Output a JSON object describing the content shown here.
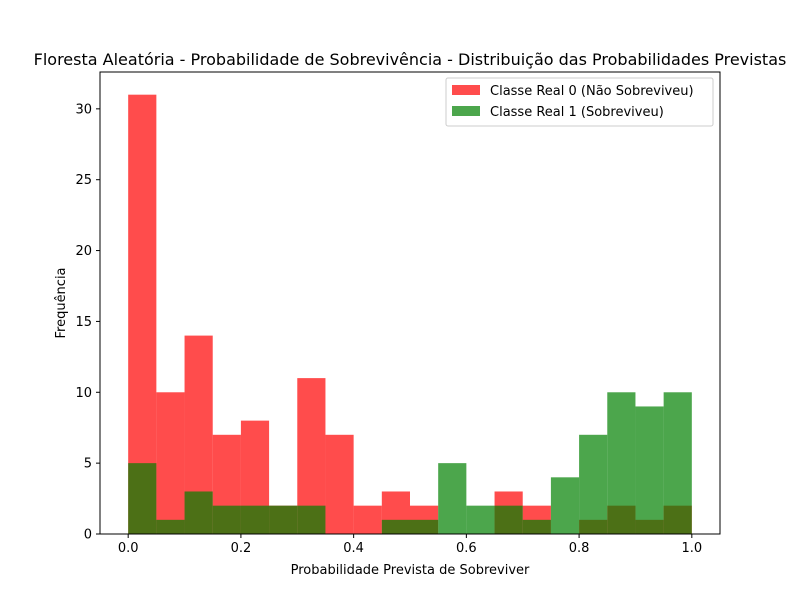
{
  "chart_data": {
    "type": "bar",
    "title": "Floresta Aleatória - Probabilidade de Sobrevivência - Distribuição das Probabilidades Previstas",
    "xlabel": "Probabilidade Prevista de Sobreviver",
    "ylabel": "Frequência",
    "xlim": [
      -0.05,
      1.05
    ],
    "ylim": [
      0,
      32.6
    ],
    "xticks": [
      0.0,
      0.2,
      0.4,
      0.6,
      0.8,
      1.0
    ],
    "xtick_labels": [
      "0.0",
      "0.2",
      "0.4",
      "0.6",
      "0.8",
      "1.0"
    ],
    "yticks": [
      0,
      5,
      10,
      15,
      20,
      25,
      30
    ],
    "ytick_labels": [
      "0",
      "5",
      "10",
      "15",
      "20",
      "25",
      "30"
    ],
    "grid": false,
    "legend_position": "top-right",
    "series": [
      {
        "name": "Classe Real 0 (Não Sobreviveu)",
        "color": "#ff0000",
        "alpha": 0.7,
        "bin_edges": [
          0.0,
          0.05,
          0.1,
          0.15,
          0.2,
          0.25,
          0.3,
          0.35,
          0.4,
          0.45,
          0.5,
          0.55,
          0.6,
          0.65,
          0.7,
          0.75,
          0.8,
          0.85,
          0.9,
          0.95,
          1.0
        ],
        "counts": [
          31,
          10,
          14,
          7,
          8,
          2,
          11,
          7,
          2,
          3,
          2,
          0,
          0,
          3,
          2,
          0,
          1,
          2,
          1,
          2
        ]
      },
      {
        "name": "Classe Real 1 (Sobreviveu)",
        "color": "#008000",
        "alpha": 0.7,
        "bin_edges": [
          0.0,
          0.05,
          0.1,
          0.15,
          0.2,
          0.25,
          0.3,
          0.35,
          0.45,
          0.5,
          0.55,
          0.6,
          0.65,
          0.7,
          0.75,
          0.8,
          0.85,
          0.9,
          0.95,
          1.0
        ],
        "counts": [
          5,
          1,
          3,
          2,
          2,
          2,
          2,
          0,
          1,
          1,
          5,
          2,
          2,
          1,
          4,
          7,
          10,
          9,
          10
        ]
      }
    ]
  }
}
